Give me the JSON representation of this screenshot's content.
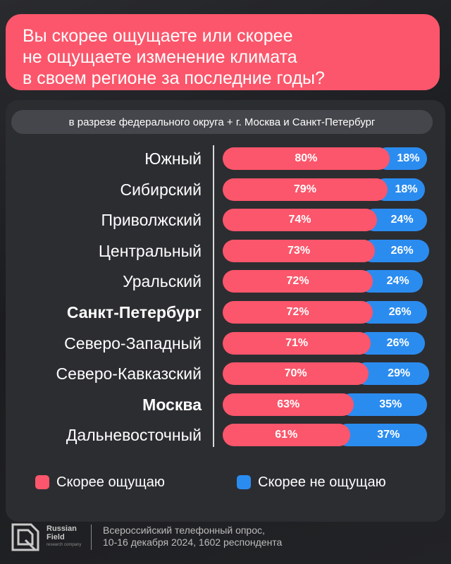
{
  "header": {
    "title": "Вы скорее ощущаете или скорее\nне ощущаете изменение климата\nв своем регионе за последние годы?"
  },
  "subtitle": "в разрезе федерального округа + г. Москва и Санкт-Петербург",
  "colors": {
    "feel": "#fb566b",
    "not_feel": "#2b8cf0",
    "header_bg": "#fb566b"
  },
  "chart_data": {
    "type": "bar",
    "orientation": "horizontal",
    "stacked": true,
    "title": "Вы скорее ощущаете или скорее не ощущаете изменение климата в своем регионе за последние годы?",
    "subtitle": "в разрезе федерального округа + г. Москва и Санкт-Петербург",
    "categories": [
      "Южный",
      "Сибирский",
      "Приволжский",
      "Центральный",
      "Уральский",
      "Санкт-Петербург",
      "Северо-Западный",
      "Северо-Кавказский",
      "Москва",
      "Дальневосточный"
    ],
    "bold_categories": [
      "Санкт-Петербург",
      "Москва"
    ],
    "series": [
      {
        "name": "Скорее ощущаю",
        "color": "#fb566b",
        "values": [
          80,
          79,
          74,
          73,
          72,
          72,
          71,
          70,
          63,
          61
        ]
      },
      {
        "name": "Скорее не ощущаю",
        "color": "#2b8cf0",
        "values": [
          18,
          18,
          24,
          26,
          24,
          26,
          26,
          29,
          35,
          37
        ]
      }
    ],
    "unit": "%",
    "legend": "bottom"
  },
  "legend": [
    {
      "label": "Скорее ощущаю",
      "color": "#fb566b"
    },
    {
      "label": "Скорее не ощущаю",
      "color": "#2b8cf0"
    }
  ],
  "footer": {
    "brand": "Russian\nField",
    "brand_sub": "research company",
    "note": "Всероссийский телефонный опрос,\n10-16 декабря 2024, 1602 респондента"
  }
}
